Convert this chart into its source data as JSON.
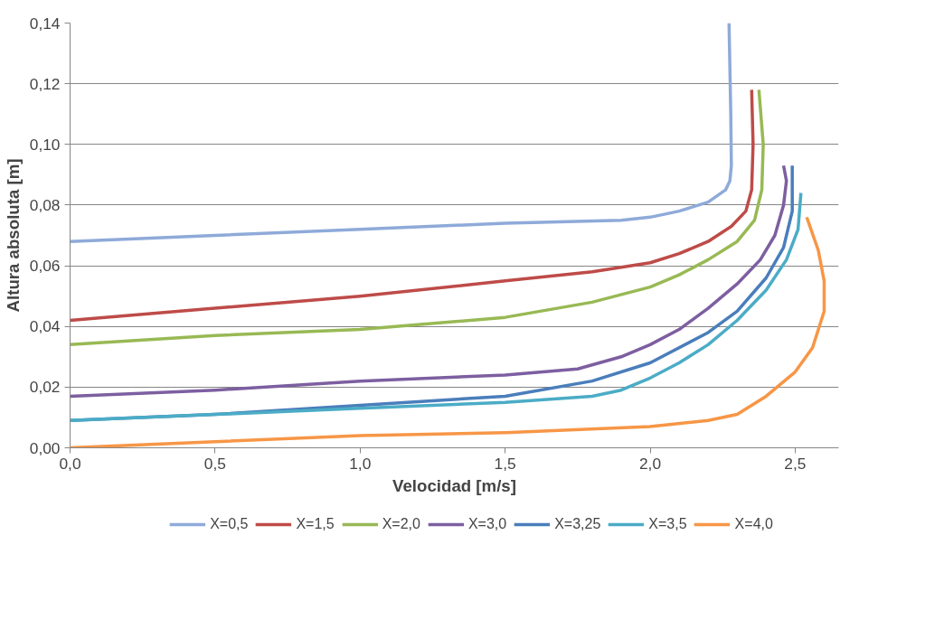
{
  "chart_data": {
    "type": "line",
    "xlabel": "Velocidad [m/s]",
    "ylabel": "Altura absoluta [m]",
    "xlim": [
      0,
      2.65
    ],
    "xticks": [
      {
        "value": 0,
        "label": "0,0"
      },
      {
        "value": 0.5,
        "label": "0,5"
      },
      {
        "value": 1.0,
        "label": "1,0"
      },
      {
        "value": 1.5,
        "label": "1,5"
      },
      {
        "value": 2.0,
        "label": "2,0"
      },
      {
        "value": 2.5,
        "label": "2,5"
      }
    ],
    "ylim": [
      0,
      0.14
    ],
    "yticks": [
      {
        "value": 0,
        "label": "0,00"
      },
      {
        "value": 0.02,
        "label": "0,02"
      },
      {
        "value": 0.04,
        "label": "0,04"
      },
      {
        "value": 0.06,
        "label": "0,06"
      },
      {
        "value": 0.08,
        "label": "0,08"
      },
      {
        "value": 0.1,
        "label": "0,10"
      },
      {
        "value": 0.12,
        "label": "0,12"
      },
      {
        "value": 0.14,
        "label": "0,14"
      }
    ],
    "grid": "y",
    "legend": "bottom",
    "marker": "none",
    "line_style": "solid",
    "series": [
      {
        "name": "X=0,5",
        "color": "#8eaad9",
        "x": [
          0,
          0.5,
          1.0,
          1.5,
          1.9,
          2.0,
          2.1,
          2.2,
          2.26,
          2.275,
          2.28,
          2.278,
          2.272
        ],
        "values": [
          0.068,
          0.07,
          0.072,
          0.074,
          0.075,
          0.076,
          0.078,
          0.081,
          0.085,
          0.088,
          0.093,
          0.11,
          0.14
        ]
      },
      {
        "name": "X=1,5",
        "color": "#be4b48",
        "x": [
          0,
          0.5,
          1.0,
          1.5,
          1.8,
          2.0,
          2.1,
          2.2,
          2.28,
          2.33,
          2.35,
          2.355,
          2.35
        ],
        "values": [
          0.042,
          0.046,
          0.05,
          0.055,
          0.058,
          0.061,
          0.064,
          0.068,
          0.073,
          0.078,
          0.085,
          0.1,
          0.118
        ]
      },
      {
        "name": "X=2,0",
        "color": "#98b954",
        "x": [
          0,
          0.5,
          1.0,
          1.5,
          1.8,
          2.0,
          2.1,
          2.2,
          2.3,
          2.36,
          2.385,
          2.39,
          2.375
        ],
        "values": [
          0.034,
          0.037,
          0.039,
          0.043,
          0.048,
          0.053,
          0.057,
          0.062,
          0.068,
          0.075,
          0.085,
          0.1,
          0.118
        ]
      },
      {
        "name": "X=3,0",
        "color": "#7d5fa0",
        "x": [
          0,
          0.5,
          1.0,
          1.5,
          1.75,
          1.9,
          2.0,
          2.1,
          2.2,
          2.3,
          2.38,
          2.43,
          2.46,
          2.47,
          2.46
        ],
        "values": [
          0.017,
          0.019,
          0.022,
          0.024,
          0.026,
          0.03,
          0.034,
          0.039,
          0.046,
          0.054,
          0.062,
          0.07,
          0.08,
          0.088,
          0.093
        ]
      },
      {
        "name": "X=3,25",
        "color": "#4a7ebb",
        "x": [
          0,
          0.5,
          1.0,
          1.5,
          1.8,
          2.0,
          2.2,
          2.3,
          2.4,
          2.46,
          2.49,
          2.49
        ],
        "values": [
          0.009,
          0.011,
          0.014,
          0.017,
          0.022,
          0.028,
          0.038,
          0.045,
          0.056,
          0.066,
          0.078,
          0.093
        ]
      },
      {
        "name": "X=3,5",
        "color": "#4bacc6",
        "x": [
          0,
          0.5,
          1.0,
          1.5,
          1.8,
          1.9,
          2.0,
          2.1,
          2.2,
          2.3,
          2.4,
          2.47,
          2.51,
          2.52
        ],
        "values": [
          0.009,
          0.011,
          0.013,
          0.015,
          0.017,
          0.019,
          0.023,
          0.028,
          0.034,
          0.042,
          0.052,
          0.062,
          0.072,
          0.084
        ]
      },
      {
        "name": "X=4,0",
        "color": "#f79646",
        "x": [
          0,
          0.5,
          1.0,
          1.5,
          2.0,
          2.2,
          2.3,
          2.4,
          2.5,
          2.56,
          2.6,
          2.6,
          2.58,
          2.54
        ],
        "values": [
          0,
          0.002,
          0.004,
          0.005,
          0.007,
          0.009,
          0.011,
          0.017,
          0.025,
          0.033,
          0.045,
          0.055,
          0.065,
          0.076
        ]
      }
    ]
  }
}
